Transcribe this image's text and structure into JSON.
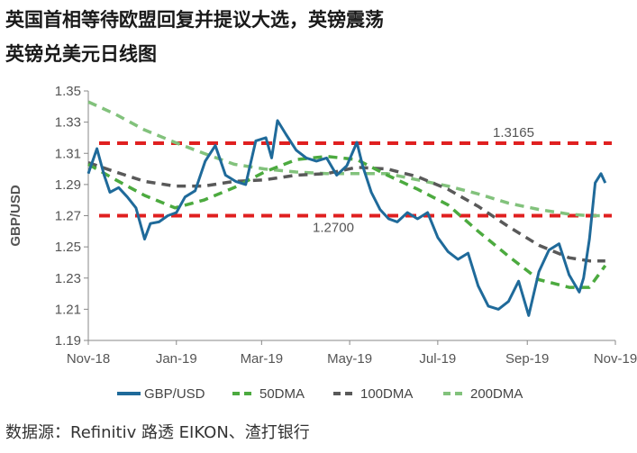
{
  "title_line1": "英国首相等待欧盟回复并提议大选，英镑震荡",
  "title_line2": "英镑兑美元日线图",
  "source": "数据源：Refinitiv 路透 EIKON、渣打银行",
  "chart_data": {
    "type": "line",
    "ylabel": "GBP/USD",
    "ylim": [
      1.19,
      1.35
    ],
    "yticks": [
      "1.35",
      "1.33",
      "1.31",
      "1.29",
      "1.27",
      "1.25",
      "1.23",
      "1.21",
      "1.19"
    ],
    "xticks": [
      "Nov-18",
      "Jan-19",
      "Mar-19",
      "May-19",
      "Jul-19",
      "Sep-19",
      "Nov-19"
    ],
    "grid": false,
    "legend_position": "bottom",
    "reference_lines": [
      {
        "value": 1.3165,
        "label": "1.3165",
        "color": "#e02020"
      },
      {
        "value": 1.27,
        "label": "1.2700",
        "color": "#e02020"
      }
    ],
    "series": [
      {
        "name": "GBP/USD",
        "color": "#1f6a9a",
        "x": [
          "2018-11-01",
          "2018-11-07",
          "2018-11-12",
          "2018-11-16",
          "2018-11-22",
          "2018-11-28",
          "2018-12-04",
          "2018-12-10",
          "2018-12-14",
          "2018-12-20",
          "2018-12-26",
          "2019-01-01",
          "2019-01-07",
          "2019-01-14",
          "2019-01-21",
          "2019-01-28",
          "2019-02-04",
          "2019-02-11",
          "2019-02-18",
          "2019-02-25",
          "2019-03-04",
          "2019-03-08",
          "2019-03-12",
          "2019-03-18",
          "2019-03-25",
          "2019-04-01",
          "2019-04-08",
          "2019-04-15",
          "2019-04-22",
          "2019-04-29",
          "2019-05-06",
          "2019-05-10",
          "2019-05-16",
          "2019-05-22",
          "2019-05-28",
          "2019-06-03",
          "2019-06-10",
          "2019-06-17",
          "2019-06-24",
          "2019-07-01",
          "2019-07-08",
          "2019-07-15",
          "2019-07-22",
          "2019-07-29",
          "2019-08-05",
          "2019-08-12",
          "2019-08-19",
          "2019-08-26",
          "2019-09-02",
          "2019-09-09",
          "2019-09-16",
          "2019-09-23",
          "2019-09-30",
          "2019-10-07",
          "2019-10-10",
          "2019-10-14",
          "2019-10-18",
          "2019-10-22",
          "2019-10-25"
        ],
        "values": [
          1.297,
          1.313,
          1.296,
          1.285,
          1.288,
          1.282,
          1.275,
          1.255,
          1.265,
          1.266,
          1.27,
          1.272,
          1.282,
          1.286,
          1.305,
          1.315,
          1.296,
          1.292,
          1.29,
          1.318,
          1.32,
          1.307,
          1.331,
          1.322,
          1.312,
          1.307,
          1.305,
          1.307,
          1.296,
          1.302,
          1.317,
          1.302,
          1.285,
          1.274,
          1.268,
          1.266,
          1.272,
          1.268,
          1.272,
          1.256,
          1.247,
          1.242,
          1.246,
          1.225,
          1.212,
          1.21,
          1.215,
          1.228,
          1.206,
          1.234,
          1.248,
          1.252,
          1.232,
          1.221,
          1.23,
          1.255,
          1.291,
          1.297,
          1.291
        ]
      },
      {
        "name": "50DMA",
        "color": "#4caa3f",
        "x": [
          "2018-11-01",
          "2018-11-20",
          "2018-12-10",
          "2018-12-31",
          "2019-01-20",
          "2019-02-10",
          "2019-03-03",
          "2019-03-25",
          "2019-04-15",
          "2019-05-06",
          "2019-05-27",
          "2019-06-17",
          "2019-07-08",
          "2019-07-29",
          "2019-08-19",
          "2019-09-09",
          "2019-09-30",
          "2019-10-14",
          "2019-10-25"
        ],
        "values": [
          1.303,
          1.293,
          1.283,
          1.275,
          1.28,
          1.288,
          1.298,
          1.306,
          1.308,
          1.306,
          1.296,
          1.287,
          1.277,
          1.26,
          1.244,
          1.229,
          1.224,
          1.224,
          1.238
        ]
      },
      {
        "name": "100DMA",
        "color": "#595959",
        "x": [
          "2018-11-01",
          "2018-11-20",
          "2018-12-10",
          "2018-12-31",
          "2019-01-20",
          "2019-02-10",
          "2019-03-03",
          "2019-03-25",
          "2019-04-15",
          "2019-05-06",
          "2019-05-27",
          "2019-06-17",
          "2019-07-08",
          "2019-07-29",
          "2019-08-19",
          "2019-09-09",
          "2019-09-30",
          "2019-10-14",
          "2019-10-25"
        ],
        "values": [
          1.304,
          1.298,
          1.292,
          1.289,
          1.289,
          1.292,
          1.293,
          1.296,
          1.297,
          1.301,
          1.3,
          1.295,
          1.287,
          1.276,
          1.263,
          1.251,
          1.243,
          1.241,
          1.241
        ]
      },
      {
        "name": "200DMA",
        "color": "#82c27c",
        "x": [
          "2018-11-01",
          "2018-11-20",
          "2018-12-10",
          "2018-12-31",
          "2019-01-20",
          "2019-02-10",
          "2019-03-03",
          "2019-03-25",
          "2019-04-15",
          "2019-05-06",
          "2019-05-27",
          "2019-06-17",
          "2019-07-08",
          "2019-07-29",
          "2019-08-19",
          "2019-09-09",
          "2019-09-30",
          "2019-10-14",
          "2019-10-25"
        ],
        "values": [
          1.343,
          1.335,
          1.325,
          1.317,
          1.31,
          1.303,
          1.3,
          1.298,
          1.297,
          1.297,
          1.297,
          1.293,
          1.289,
          1.284,
          1.278,
          1.274,
          1.271,
          1.27,
          1.27
        ]
      }
    ]
  }
}
